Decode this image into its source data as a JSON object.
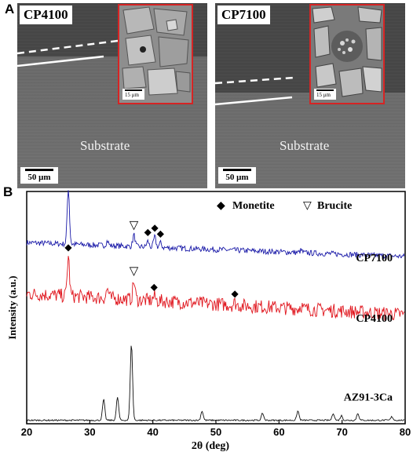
{
  "figure": {
    "panel_a_label": "A",
    "panel_b_label": "B"
  },
  "panel_a": {
    "left": {
      "sample": "CP4100",
      "inset_scale": "15 μm",
      "substrate_label": "Substrate",
      "scale_bar": "50 μm"
    },
    "right": {
      "sample": "CP7100",
      "inset_scale": "15 μm",
      "substrate_label": "Substrate",
      "scale_bar": "50 μm"
    }
  },
  "colors": {
    "cp7100": "#1a1aa8",
    "cp4100": "#e0141c",
    "az91": "#111111",
    "inset_border": "#d62424"
  },
  "chart_data": {
    "type": "line",
    "xlabel": "2θ (deg)",
    "ylabel": "Intensity (a.u.)",
    "xlim": [
      20,
      80
    ],
    "xticks": [
      20,
      30,
      40,
      50,
      60,
      70,
      80
    ],
    "legend": [
      {
        "symbol": "◆",
        "label": "Monetite"
      },
      {
        "symbol": "▽",
        "label": "Brucite"
      }
    ],
    "series": [
      {
        "name": "CP7100",
        "baseline": 0.78,
        "slope": -0.06,
        "noise": 0.012,
        "peaks": [
          [
            26.6,
            0.24
          ],
          [
            32.8,
            0.02
          ],
          [
            37.0,
            0.05
          ],
          [
            39.2,
            0.025
          ],
          [
            40.3,
            0.045
          ],
          [
            41.2,
            0.02
          ],
          [
            63.5,
            0.01
          ]
        ],
        "markers": [
          {
            "x": 26.6,
            "symbol": "◆"
          },
          {
            "x": 37.0,
            "symbol": "▽"
          },
          {
            "x": 39.2,
            "symbol": "◆"
          },
          {
            "x": 40.3,
            "symbol": "◆"
          },
          {
            "x": 41.2,
            "symbol": "◆"
          }
        ]
      },
      {
        "name": "CP4100",
        "baseline": 0.56,
        "slope": -0.09,
        "noise": 0.03,
        "peaks": [
          [
            26.6,
            0.17
          ],
          [
            32.8,
            0.04
          ],
          [
            37.0,
            0.08
          ],
          [
            40.2,
            0.02
          ],
          [
            53.0,
            0.01
          ],
          [
            63.5,
            0.015
          ]
        ],
        "markers": [
          {
            "x": 26.6,
            "symbol": "◆"
          },
          {
            "x": 37.0,
            "symbol": "▽"
          },
          {
            "x": 40.2,
            "symbol": "◆"
          },
          {
            "x": 53.0,
            "symbol": "◆"
          }
        ]
      },
      {
        "name": "AZ91-3Ca",
        "baseline": 0.015,
        "slope": 0.0,
        "noise": 0.003,
        "peaks": [
          [
            32.2,
            0.09
          ],
          [
            34.4,
            0.1
          ],
          [
            36.6,
            0.33
          ],
          [
            47.8,
            0.04
          ],
          [
            57.4,
            0.03
          ],
          [
            63.0,
            0.04
          ],
          [
            68.6,
            0.03
          ],
          [
            69.9,
            0.02
          ],
          [
            72.5,
            0.03
          ],
          [
            77.9,
            0.015
          ]
        ],
        "markers": []
      }
    ]
  }
}
